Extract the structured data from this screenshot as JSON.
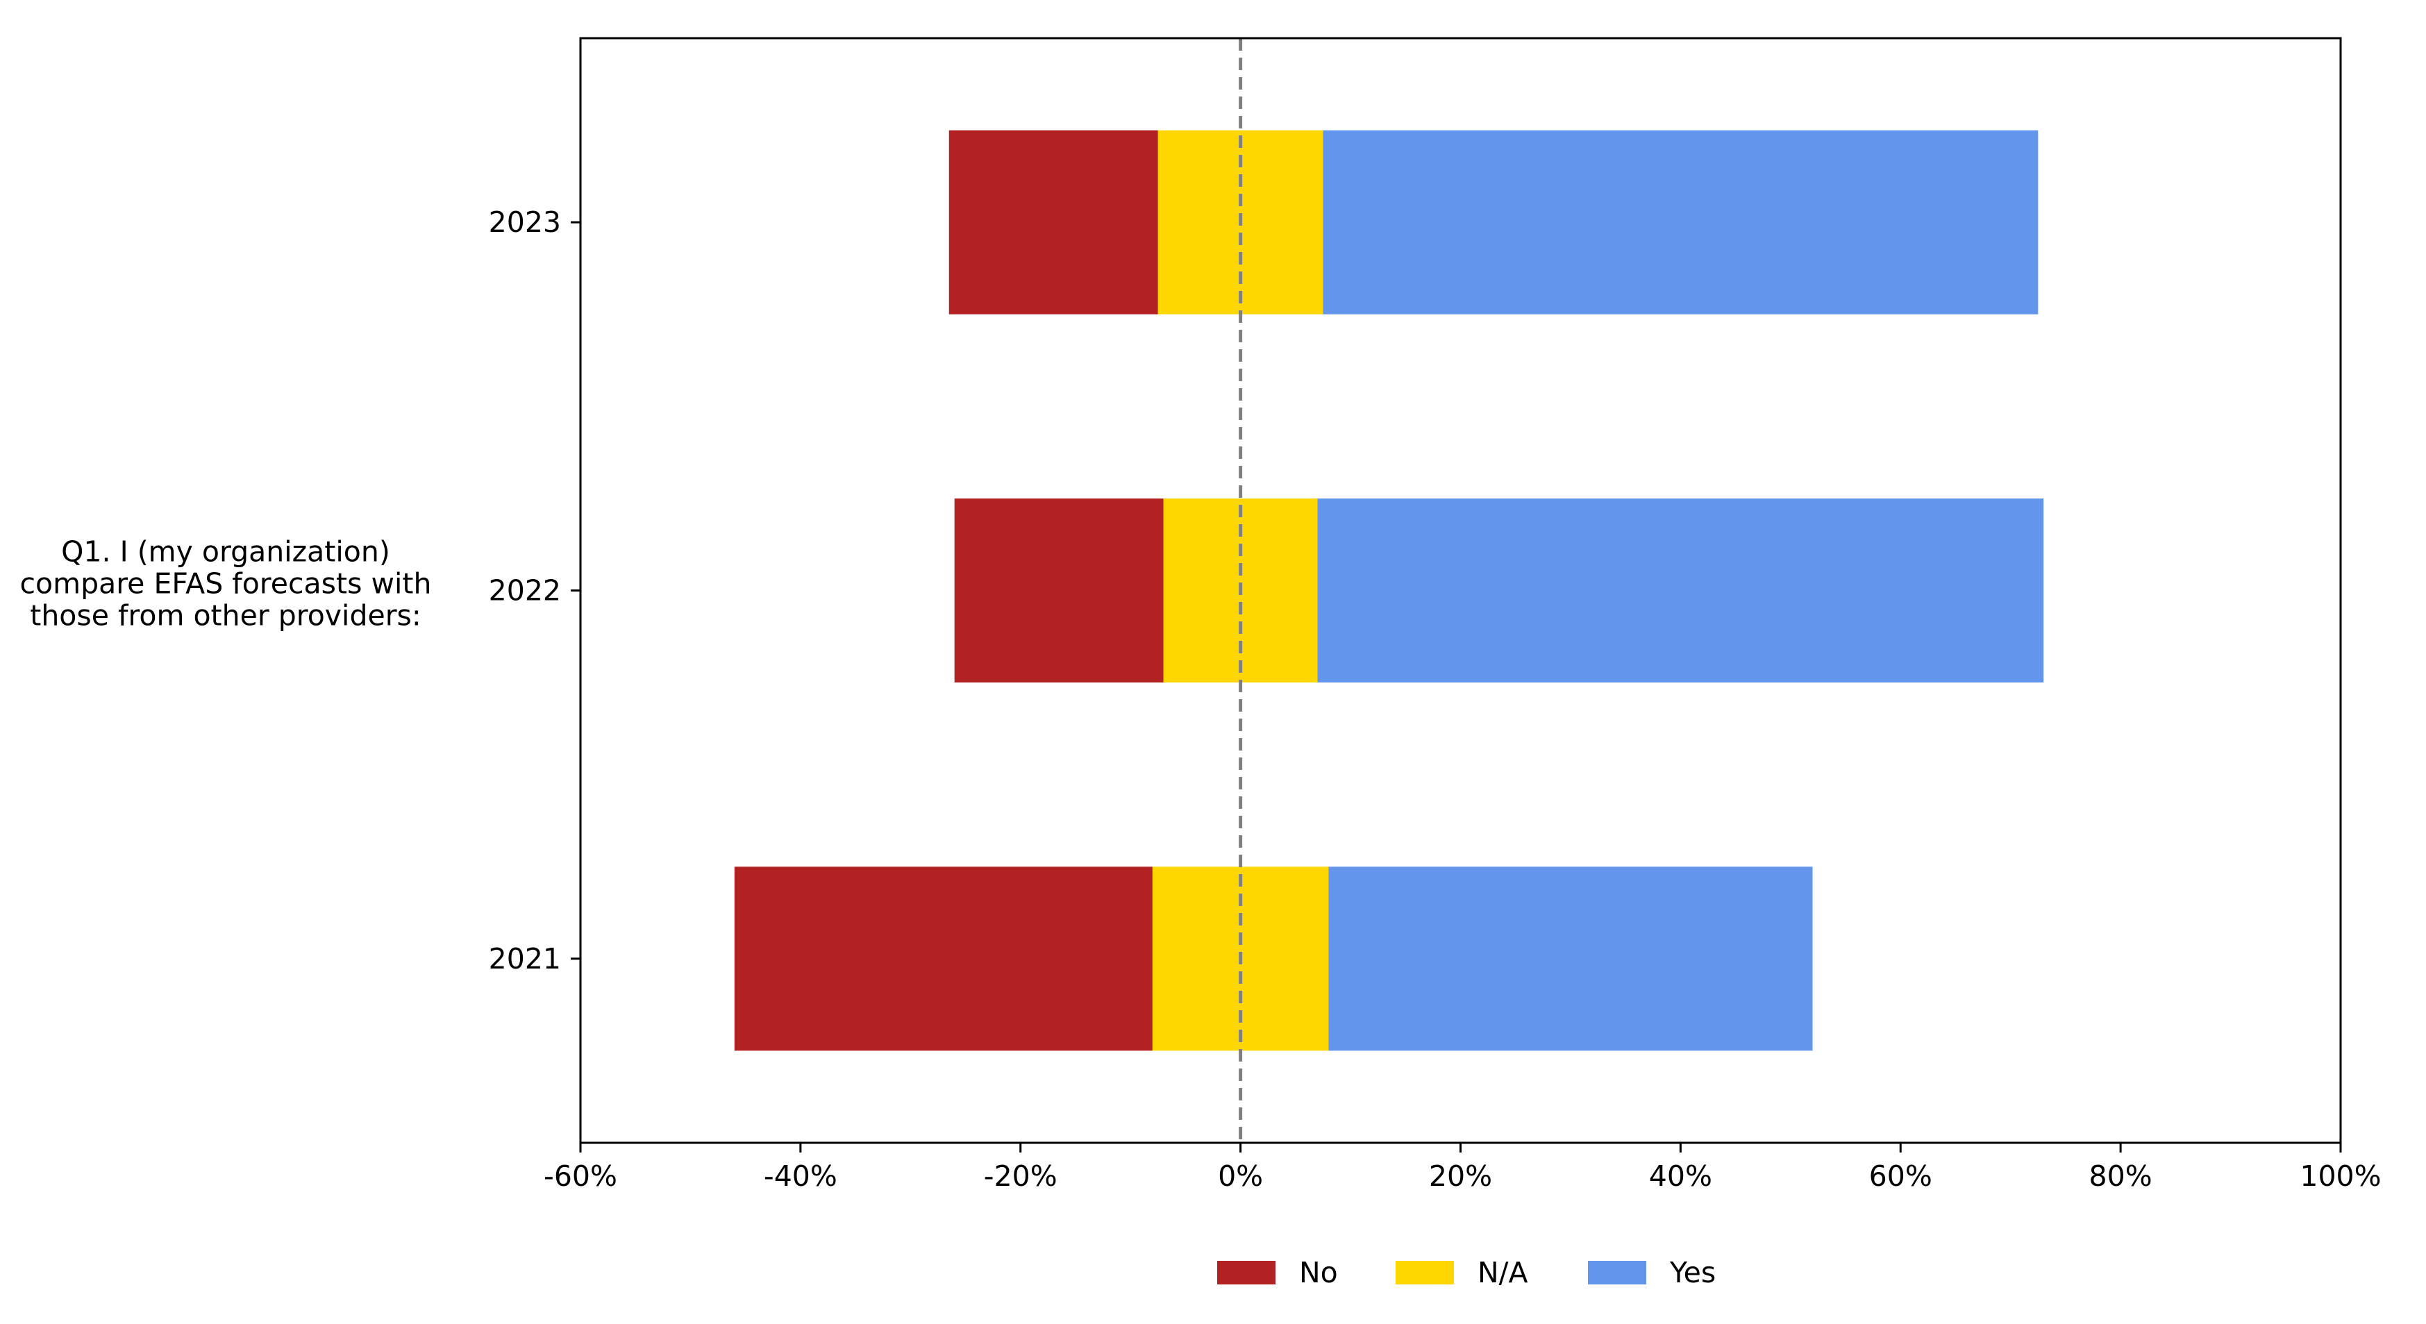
{
  "chart_data": {
    "type": "bar",
    "orientation": "horizontal",
    "stacked": "diverging",
    "title": "",
    "question_label": "Q1. I (my organization)\ncompare EFAS forecasts with\nthose from other providers:",
    "xlabel": "",
    "ylabel": "",
    "categories": [
      "2023",
      "2022",
      "2021"
    ],
    "series": [
      {
        "name": "No",
        "color": "#b22222",
        "start": [
          -26.5,
          -26.0,
          -46.0
        ],
        "end": [
          -7.5,
          -7.0,
          -8.0
        ]
      },
      {
        "name": "N/A",
        "color": "#ffd700",
        "start": [
          -7.5,
          -7.0,
          -8.0
        ],
        "end": [
          7.5,
          7.0,
          8.0
        ]
      },
      {
        "name": "Yes",
        "color": "#6495ed",
        "start": [
          7.5,
          7.0,
          8.0
        ],
        "end": [
          72.5,
          73.0,
          52.0
        ]
      }
    ],
    "xlim": [
      -60,
      100
    ],
    "xticks": [
      -60,
      -40,
      -20,
      0,
      20,
      40,
      60,
      80,
      100
    ],
    "xtick_labels": [
      "-60%",
      "-40%",
      "-20%",
      "0%",
      "20%",
      "40%",
      "60%",
      "80%",
      "100%"
    ],
    "center_line": {
      "value": 0,
      "style": "dashed",
      "color": "#808080"
    },
    "grid": false,
    "legend_position": "bottom-center"
  }
}
